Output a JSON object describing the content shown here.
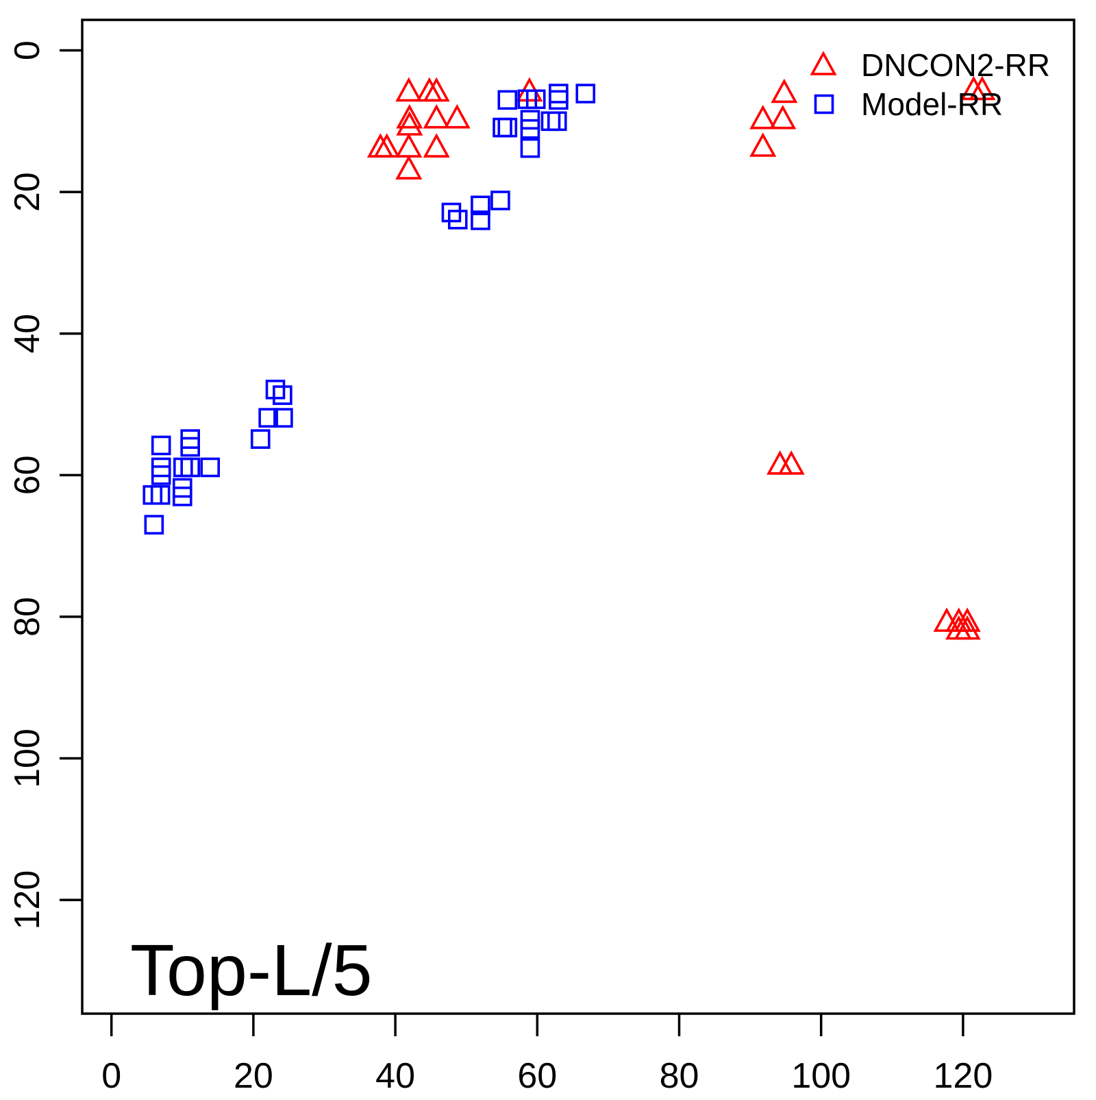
{
  "chart_data": {
    "type": "scatter",
    "title": "",
    "annotation": "Top-L/5",
    "xlabel": "",
    "ylabel": "",
    "x_ticks": [
      0,
      20,
      40,
      60,
      80,
      100,
      120
    ],
    "y_ticks": [
      0,
      20,
      40,
      60,
      80,
      100,
      120
    ],
    "xlim": [
      -4.2,
      135.9
    ],
    "ylim": [
      -4.3,
      136.0
    ],
    "y_inverted": true,
    "grid": false,
    "legend_position": "top-right",
    "colors": {
      "dncon2_rr": "#FF0000",
      "model_rr": "#0000FF",
      "axis": "#000000",
      "background": "#FFFFFF"
    },
    "series": [
      {
        "name": "DNCON2-RR",
        "marker": "triangle-open",
        "color": "#FF0000",
        "points": [
          [
            41.9,
            5.8
          ],
          [
            44.8,
            5.8
          ],
          [
            45.8,
            5.8
          ],
          [
            58.9,
            5.8
          ],
          [
            42.0,
            9.6
          ],
          [
            42.0,
            10.6
          ],
          [
            45.8,
            9.6
          ],
          [
            48.7,
            9.6
          ],
          [
            37.9,
            13.7
          ],
          [
            38.8,
            13.7
          ],
          [
            41.9,
            13.7
          ],
          [
            45.8,
            13.7
          ],
          [
            41.9,
            16.8
          ],
          [
            94.8,
            6.0
          ],
          [
            91.8,
            9.7
          ],
          [
            94.6,
            9.7
          ],
          [
            91.8,
            13.6
          ],
          [
            121.5,
            5.6
          ],
          [
            122.7,
            5.6
          ],
          [
            94.2,
            58.5
          ],
          [
            95.8,
            58.5
          ],
          [
            117.7,
            80.7
          ],
          [
            119.4,
            80.7
          ],
          [
            120.6,
            80.7
          ],
          [
            119.4,
            81.8
          ],
          [
            120.6,
            81.8
          ]
        ]
      },
      {
        "name": "Model-RR",
        "marker": "square-open",
        "color": "#0000FF",
        "points": [
          [
            55.8,
            7.0
          ],
          [
            58.6,
            6.9
          ],
          [
            59.8,
            6.9
          ],
          [
            63.0,
            6.1
          ],
          [
            63.0,
            7.0
          ],
          [
            66.8,
            6.1
          ],
          [
            55.1,
            10.9
          ],
          [
            55.8,
            10.9
          ],
          [
            59.0,
            9.8
          ],
          [
            59.0,
            11.1
          ],
          [
            61.9,
            10.0
          ],
          [
            62.8,
            10.0
          ],
          [
            59.0,
            13.8
          ],
          [
            47.9,
            22.9
          ],
          [
            48.8,
            23.9
          ],
          [
            52.0,
            21.9
          ],
          [
            52.0,
            24.0
          ],
          [
            54.8,
            21.2
          ],
          [
            23.1,
            47.9
          ],
          [
            24.1,
            48.7
          ],
          [
            22.1,
            51.9
          ],
          [
            24.2,
            51.9
          ],
          [
            21.0,
            54.9
          ],
          [
            7.0,
            55.8
          ],
          [
            11.1,
            54.9
          ],
          [
            11.1,
            56.0
          ],
          [
            7.0,
            58.9
          ],
          [
            7.0,
            60.0
          ],
          [
            10.1,
            58.9
          ],
          [
            11.1,
            58.9
          ],
          [
            13.9,
            58.9
          ],
          [
            5.8,
            62.8
          ],
          [
            6.9,
            62.8
          ],
          [
            10.0,
            61.8
          ],
          [
            10.0,
            63.0
          ],
          [
            6.0,
            67.0
          ]
        ]
      }
    ]
  }
}
